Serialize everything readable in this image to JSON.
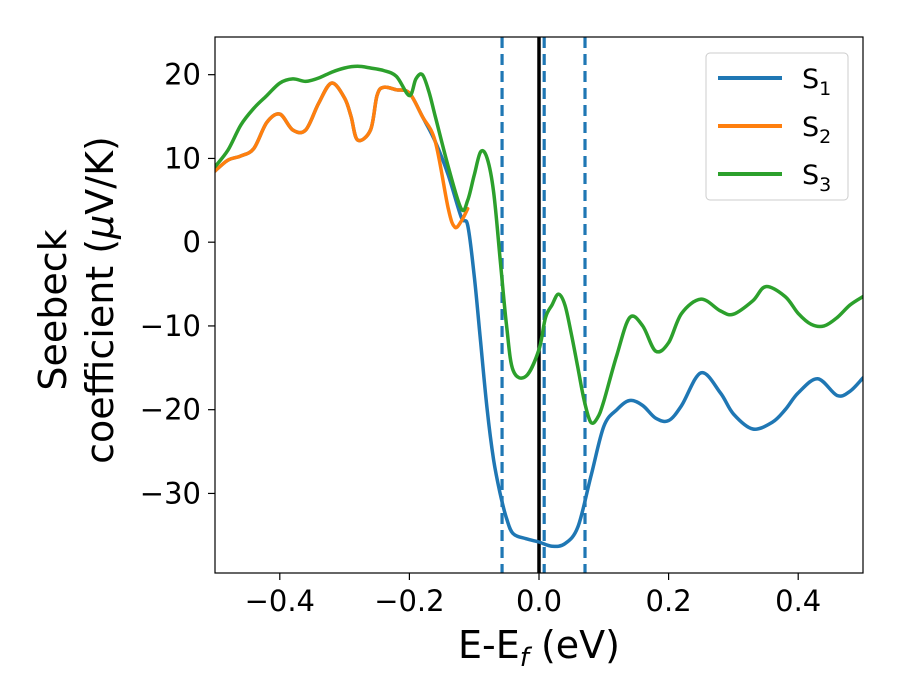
{
  "chart_data": {
    "type": "line",
    "xlabel": {
      "main": "E-E",
      "sub": "f",
      "tail": " (eV)"
    },
    "ylabel": {
      "line1": "Seebeck",
      "line2_a": "coefficient  (",
      "line2_mu": "μ",
      "line2_b": "V/K)"
    },
    "xlim": [
      -0.5,
      0.5
    ],
    "ylim": [
      -39.5,
      24.5
    ],
    "xticks": [
      -0.4,
      -0.2,
      0.0,
      0.2,
      0.4
    ],
    "xtick_labels": [
      "−0.4",
      "−0.2",
      "0.0",
      "0.2",
      "0.4"
    ],
    "yticks": [
      -30,
      -20,
      -10,
      0,
      10,
      20
    ],
    "ytick_labels": [
      "−30",
      "−20",
      "−10",
      "0",
      "10",
      "20"
    ],
    "grid": false,
    "legend_position": "top-right",
    "vlines": [
      {
        "x": 0.0,
        "style": "solid",
        "color": "#000000"
      },
      {
        "x": -0.057,
        "style": "dashed",
        "color": "#1f77b4"
      },
      {
        "x": 0.008,
        "style": "dashed",
        "color": "#1f77b4"
      },
      {
        "x": 0.071,
        "style": "dashed",
        "color": "#1f77b4"
      }
    ],
    "series": [
      {
        "name": "S",
        "sub": "1",
        "color": "#1f77b4",
        "x": [
          -0.5,
          -0.48,
          -0.46,
          -0.44,
          -0.42,
          -0.4,
          -0.38,
          -0.36,
          -0.34,
          -0.32,
          -0.3,
          -0.29,
          -0.28,
          -0.26,
          -0.25,
          -0.24,
          -0.22,
          -0.2,
          -0.18,
          -0.16,
          -0.14,
          -0.12,
          -0.11,
          -0.1,
          -0.09,
          -0.08,
          -0.07,
          -0.06,
          -0.05,
          -0.04,
          -0.02,
          0.0,
          0.02,
          0.04,
          0.06,
          0.08,
          0.1,
          0.12,
          0.14,
          0.16,
          0.18,
          0.2,
          0.22,
          0.25,
          0.28,
          0.3,
          0.33,
          0.36,
          0.38,
          0.4,
          0.43,
          0.46,
          0.48,
          0.5
        ],
        "y": [
          8.5,
          9.8,
          10.3,
          11.2,
          14.3,
          15.3,
          13.4,
          13.4,
          16.6,
          19.0,
          17.2,
          15.0,
          12.2,
          13.4,
          17.5,
          18.5,
          18.2,
          17.8,
          15.0,
          12.0,
          8.0,
          3.0,
          2.0,
          -4.0,
          -12.0,
          -20.0,
          -26.0,
          -30.0,
          -33.0,
          -34.8,
          -35.4,
          -35.8,
          -36.3,
          -36.0,
          -34.0,
          -28.0,
          -22.0,
          -20.0,
          -18.9,
          -19.5,
          -21.0,
          -21.3,
          -19.5,
          -15.6,
          -18.0,
          -20.5,
          -22.3,
          -21.5,
          -20.0,
          -18.0,
          -16.3,
          -18.3,
          -17.8,
          -16.2
        ]
      },
      {
        "name": "S",
        "sub": "2",
        "color": "#ff7f0e",
        "x": [
          -0.5,
          -0.48,
          -0.46,
          -0.44,
          -0.42,
          -0.4,
          -0.38,
          -0.36,
          -0.34,
          -0.32,
          -0.3,
          -0.29,
          -0.28,
          -0.26,
          -0.25,
          -0.24,
          -0.22,
          -0.2,
          -0.18,
          -0.16,
          -0.14,
          -0.13,
          -0.12,
          -0.11
        ],
        "y": [
          8.5,
          9.8,
          10.3,
          11.2,
          14.3,
          15.3,
          13.4,
          13.4,
          16.6,
          19.0,
          17.2,
          15.0,
          12.2,
          13.4,
          17.5,
          18.5,
          18.2,
          17.8,
          15.0,
          12.0,
          4.0,
          1.8,
          2.5,
          4.0
        ]
      },
      {
        "name": "S",
        "sub": "3",
        "color": "#2ca02c",
        "x": [
          -0.5,
          -0.48,
          -0.46,
          -0.44,
          -0.42,
          -0.4,
          -0.38,
          -0.36,
          -0.34,
          -0.32,
          -0.3,
          -0.28,
          -0.26,
          -0.24,
          -0.22,
          -0.2,
          -0.19,
          -0.18,
          -0.17,
          -0.16,
          -0.14,
          -0.12,
          -0.11,
          -0.1,
          -0.09,
          -0.08,
          -0.07,
          -0.06,
          -0.05,
          -0.04,
          -0.02,
          0.0,
          0.01,
          0.02,
          0.03,
          0.04,
          0.05,
          0.06,
          0.07,
          0.08,
          0.09,
          0.1,
          0.12,
          0.14,
          0.16,
          0.18,
          0.2,
          0.22,
          0.25,
          0.28,
          0.3,
          0.33,
          0.35,
          0.38,
          0.4,
          0.42,
          0.44,
          0.46,
          0.48,
          0.5
        ],
        "y": [
          9.0,
          11.0,
          14.0,
          16.0,
          17.5,
          19.0,
          19.5,
          19.2,
          19.6,
          20.3,
          20.8,
          21.0,
          20.8,
          20.5,
          19.8,
          17.5,
          19.5,
          20.0,
          18.0,
          15.0,
          9.0,
          4.0,
          5.0,
          8.0,
          10.8,
          10.0,
          6.0,
          -2.0,
          -10.0,
          -15.3,
          -16.0,
          -12.8,
          -9.0,
          -7.5,
          -6.2,
          -7.5,
          -11.0,
          -15.0,
          -19.0,
          -21.5,
          -21.0,
          -19.0,
          -13.5,
          -9.0,
          -10.0,
          -13.0,
          -12.0,
          -8.5,
          -6.8,
          -8.2,
          -8.6,
          -7.0,
          -5.3,
          -6.5,
          -8.5,
          -9.8,
          -10.0,
          -9.0,
          -7.5,
          -6.5
        ]
      }
    ]
  }
}
